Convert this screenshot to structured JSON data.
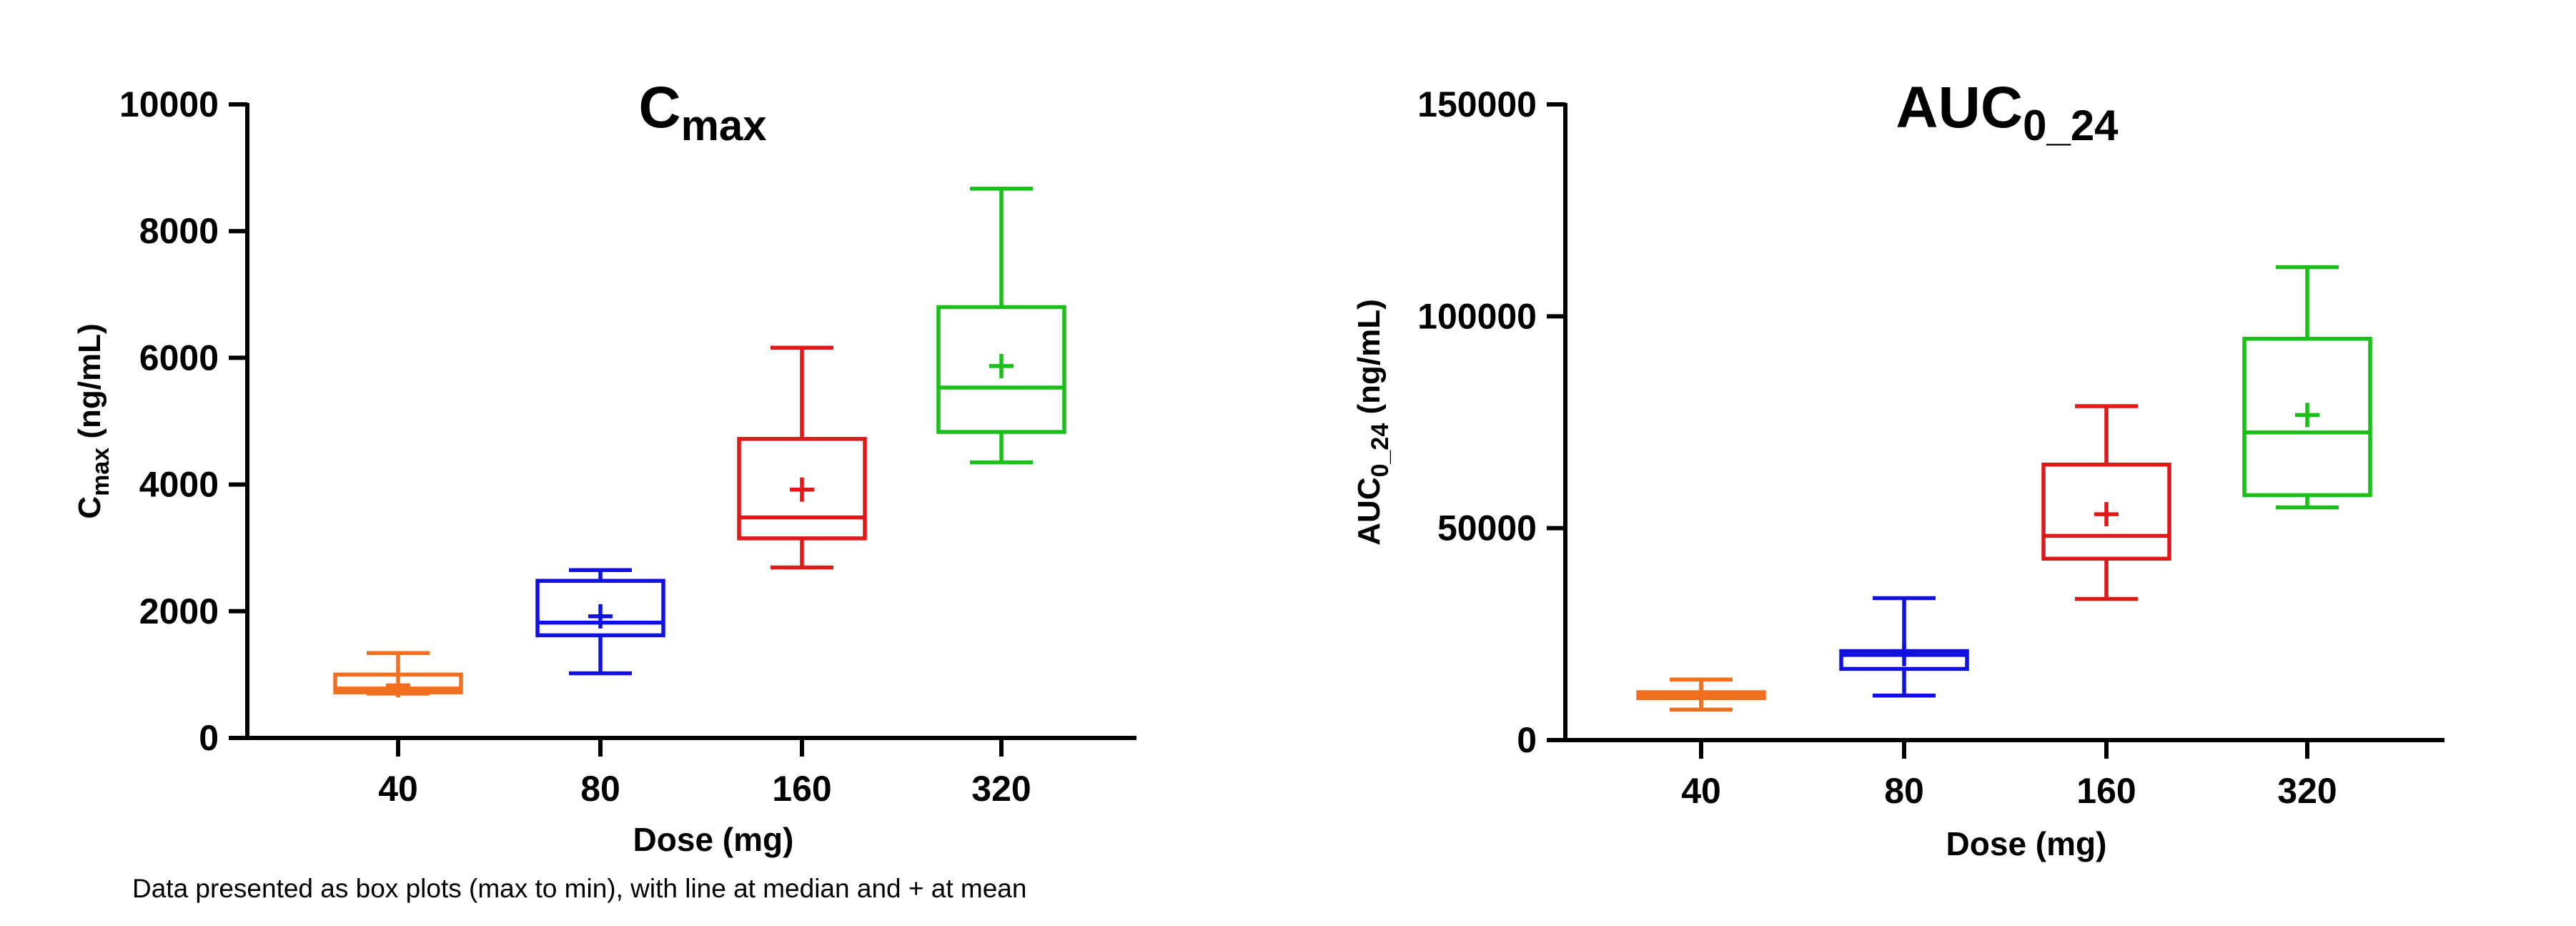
{
  "chart_data": [
    {
      "type": "box",
      "title": "C",
      "title_sub": "max",
      "ylabel": "C",
      "ylabel_sub": "max",
      "ylabel_suffix": " (ng/mL)",
      "xlabel": "Dose (mg)",
      "ylim": [
        0,
        10000
      ],
      "yticks": [
        "0",
        "2000",
        "4000",
        "6000",
        "8000",
        "10000"
      ],
      "ytick_values": [
        0,
        2000,
        4000,
        6000,
        8000,
        10000
      ],
      "categories": [
        "40",
        "80",
        "160",
        "320"
      ],
      "grid": false,
      "boxes": [
        {
          "category": "40",
          "color": "#f07020",
          "min": 700,
          "q1": 720,
          "median": 780,
          "q3": 1000,
          "max": 1340,
          "mean": 830
        },
        {
          "category": "80",
          "color": "#1010e0",
          "min": 1020,
          "q1": 1620,
          "median": 1820,
          "q3": 2480,
          "max": 2650,
          "mean": 1920
        },
        {
          "category": "160",
          "color": "#e01818",
          "min": 2690,
          "q1": 3150,
          "median": 3480,
          "q3": 4720,
          "max": 6160,
          "mean": 3920
        },
        {
          "category": "320",
          "color": "#18c018",
          "min": 4350,
          "q1": 4830,
          "median": 5530,
          "q3": 6800,
          "max": 8670,
          "mean": 5870
        }
      ]
    },
    {
      "type": "box",
      "title": "AUC",
      "title_sub": "0_24",
      "ylabel": "AUC",
      "ylabel_sub": "0_24",
      "ylabel_suffix": " (ng/mL)",
      "xlabel": "Dose (mg)",
      "ylim": [
        0,
        150000
      ],
      "yticks": [
        "0",
        "50000",
        "100000",
        "150000"
      ],
      "ytick_values": [
        0,
        50000,
        100000,
        150000
      ],
      "categories": [
        "40",
        "80",
        "160",
        "320"
      ],
      "grid": false,
      "boxes": [
        {
          "category": "40",
          "color": "#f07020",
          "min": 7200,
          "q1": 9900,
          "median": 10600,
          "q3": 11300,
          "max": 14300,
          "mean": 10700
        },
        {
          "category": "80",
          "color": "#1010e0",
          "min": 10500,
          "q1": 16800,
          "median": 20100,
          "q3": 21000,
          "max": 33500,
          "mean": 20300
        },
        {
          "category": "160",
          "color": "#e01818",
          "min": 33300,
          "q1": 42800,
          "median": 48200,
          "q3": 65000,
          "max": 78800,
          "mean": 53300
        },
        {
          "category": "320",
          "color": "#18c018",
          "min": 54900,
          "q1": 57800,
          "median": 72600,
          "q3": 94700,
          "max": 111600,
          "mean": 76700
        }
      ]
    }
  ],
  "footnote": "Data presented as box plots (max to min), with line at median and + at mean"
}
